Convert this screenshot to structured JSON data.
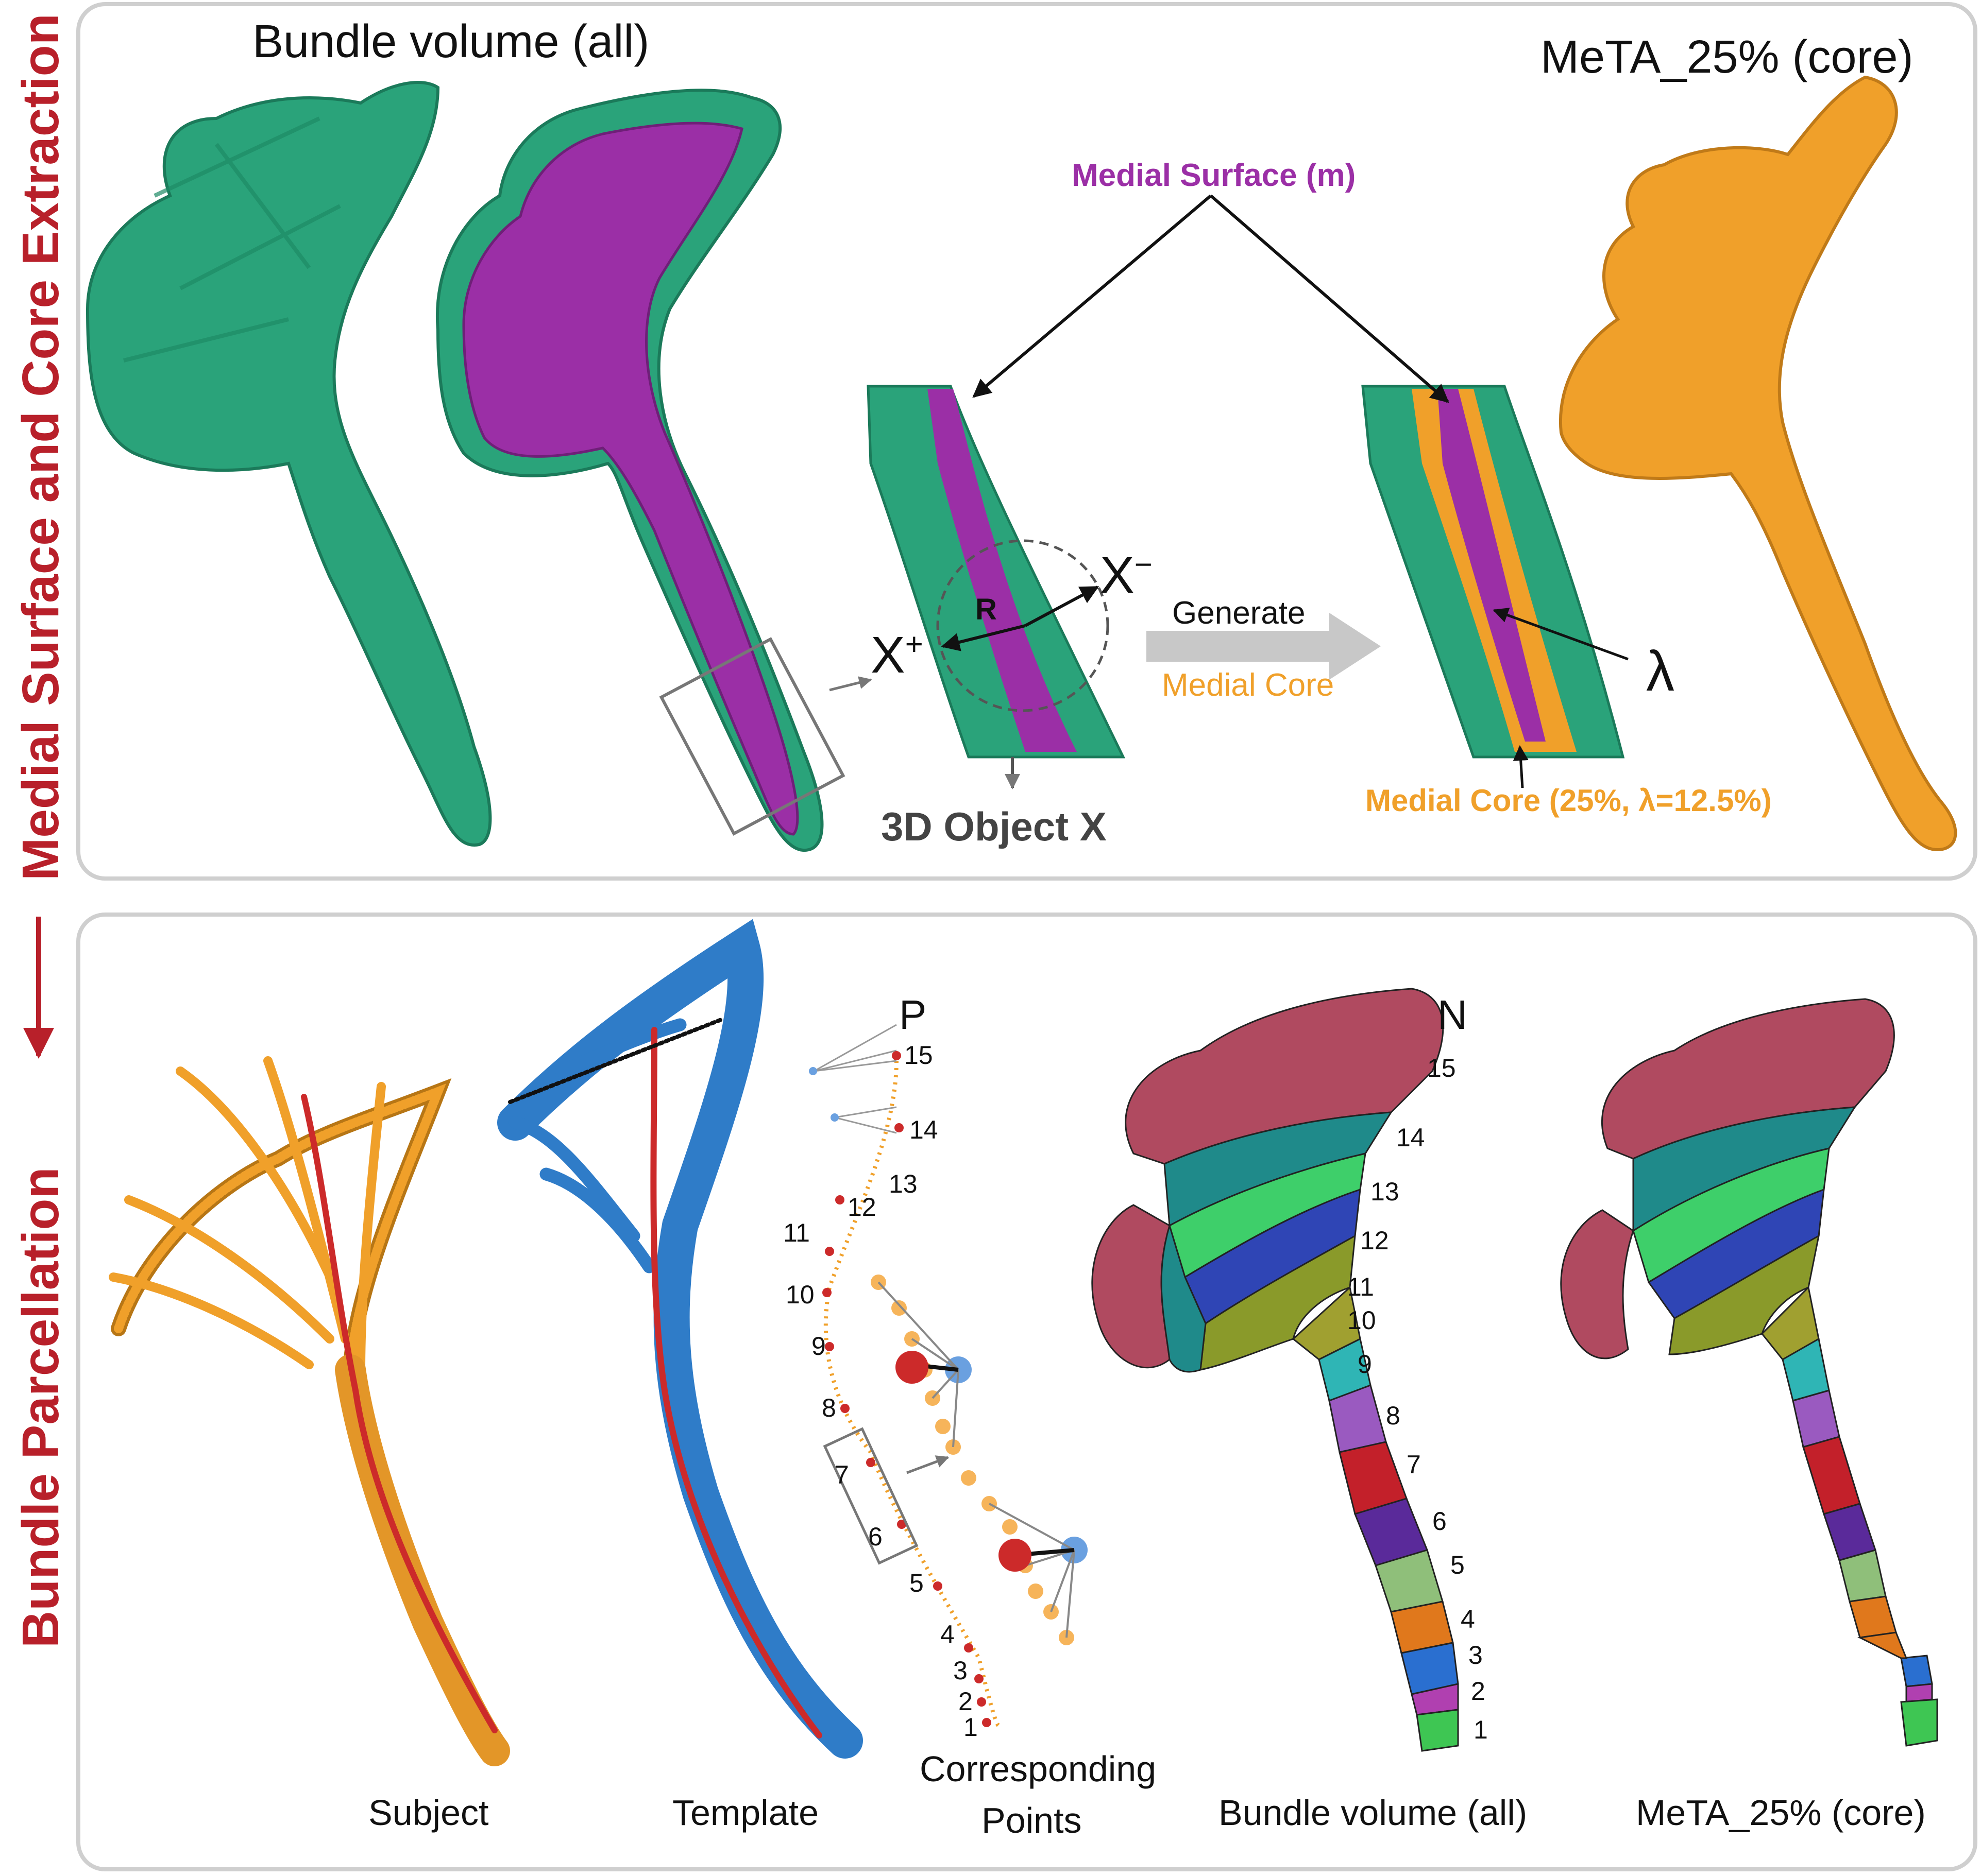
{
  "side_labels": {
    "top": "Medial Surface and Core Extraction",
    "bottom": "Bundle Parcellation"
  },
  "top_panel": {
    "title_left": "Bundle volume (all)",
    "title_right": "MeTA_25% (core)",
    "medial_surface": "Medial Surface (m)",
    "r_label": "R",
    "x_plus": "X",
    "x_plus_sup": "+",
    "x_minus": "X",
    "x_minus_sup": "−",
    "generate": "Generate",
    "medial_core": "Medial Core",
    "lambda": "λ",
    "object_x": "3D Object X",
    "medial_core_caption": "Medial Core (25%, λ=12.5%)"
  },
  "bottom_panel": {
    "captions": {
      "subject": "Subject",
      "template": "Template",
      "corresponding_line1": "Corresponding",
      "corresponding_line2": "Points",
      "bundle_volume": "Bundle volume (all)",
      "meta_core": "MeTA_25% (core)"
    },
    "p_label": "P",
    "n_label": "N",
    "segment_numbers": [
      "1",
      "2",
      "3",
      "4",
      "5",
      "6",
      "7",
      "8",
      "9",
      "10",
      "11",
      "12",
      "13",
      "14",
      "15"
    ]
  },
  "colors": {
    "bundle_green": "#2aa37a",
    "medial_purple": "#9b2fa6",
    "core_orange": "#f0a02a",
    "template_blue": "#2f7cc8",
    "centerline_red": "#cc2a2a",
    "accent_red": "#b8202a",
    "segments": [
      "#3ec653",
      "#b040b0",
      "#2a6fd0",
      "#e0781c",
      "#8fbf7a",
      "#5a2a9a",
      "#c3202a",
      "#9a5ac0",
      "#2fb5b5",
      "#a0a030",
      "#8a9a2a",
      "#2f45b5",
      "#3ecf6a",
      "#1f8a8a",
      "#b04a60"
    ]
  }
}
